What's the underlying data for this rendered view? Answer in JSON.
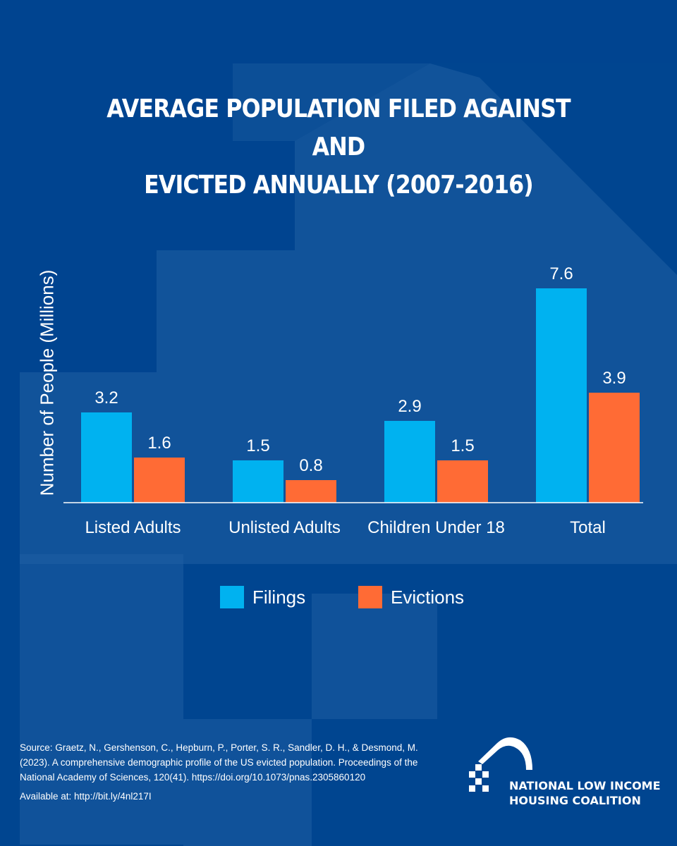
{
  "colors": {
    "background": "#004590",
    "shape_light": "#1f5fa3",
    "filings": "#00b2f0",
    "evictions": "#ff6b35",
    "text": "#ffffff"
  },
  "chart_data": {
    "type": "bar",
    "title_lines": [
      "AVERAGE POPULATION FILED AGAINST AND",
      "EVICTED ANNUALLY (2007-2016)"
    ],
    "xlabel": "",
    "ylabel": "Number of People (Millions)",
    "categories": [
      "Listed Adults",
      "Unlisted Adults",
      "Children Under 18",
      "Total"
    ],
    "series": [
      {
        "name": "Filings",
        "color": "#00b2f0",
        "values": [
          3.2,
          1.5,
          2.9,
          7.6
        ],
        "labels": [
          "3.2",
          "1.5",
          "2.9",
          "7.6"
        ]
      },
      {
        "name": "Evictions",
        "color": "#ff6b35",
        "values": [
          1.6,
          0.8,
          1.5,
          3.9
        ],
        "labels": [
          "1.6",
          "0.8",
          "1.5",
          "3.9"
        ]
      }
    ],
    "ylim": [
      0,
      8
    ],
    "grid": false,
    "legend_position": "bottom-center"
  },
  "source": {
    "citation": "Source: Graetz, N., Gershenson, C., Hepburn, P., Porter, S. R., Sandler, D. H., & Desmond, M. (2023). A comprehensive demographic profile of the US evicted population. Proceedings of the National Academy of Sciences, 120(41). https://doi.org/10.1073/pnas.2305860120",
    "available": "Available at: http://bit.ly/4nl217I"
  },
  "logo": {
    "line1": "NATIONAL LOW INCOME",
    "line2": "HOUSING COALITION",
    "icon": "house-logo-icon"
  }
}
